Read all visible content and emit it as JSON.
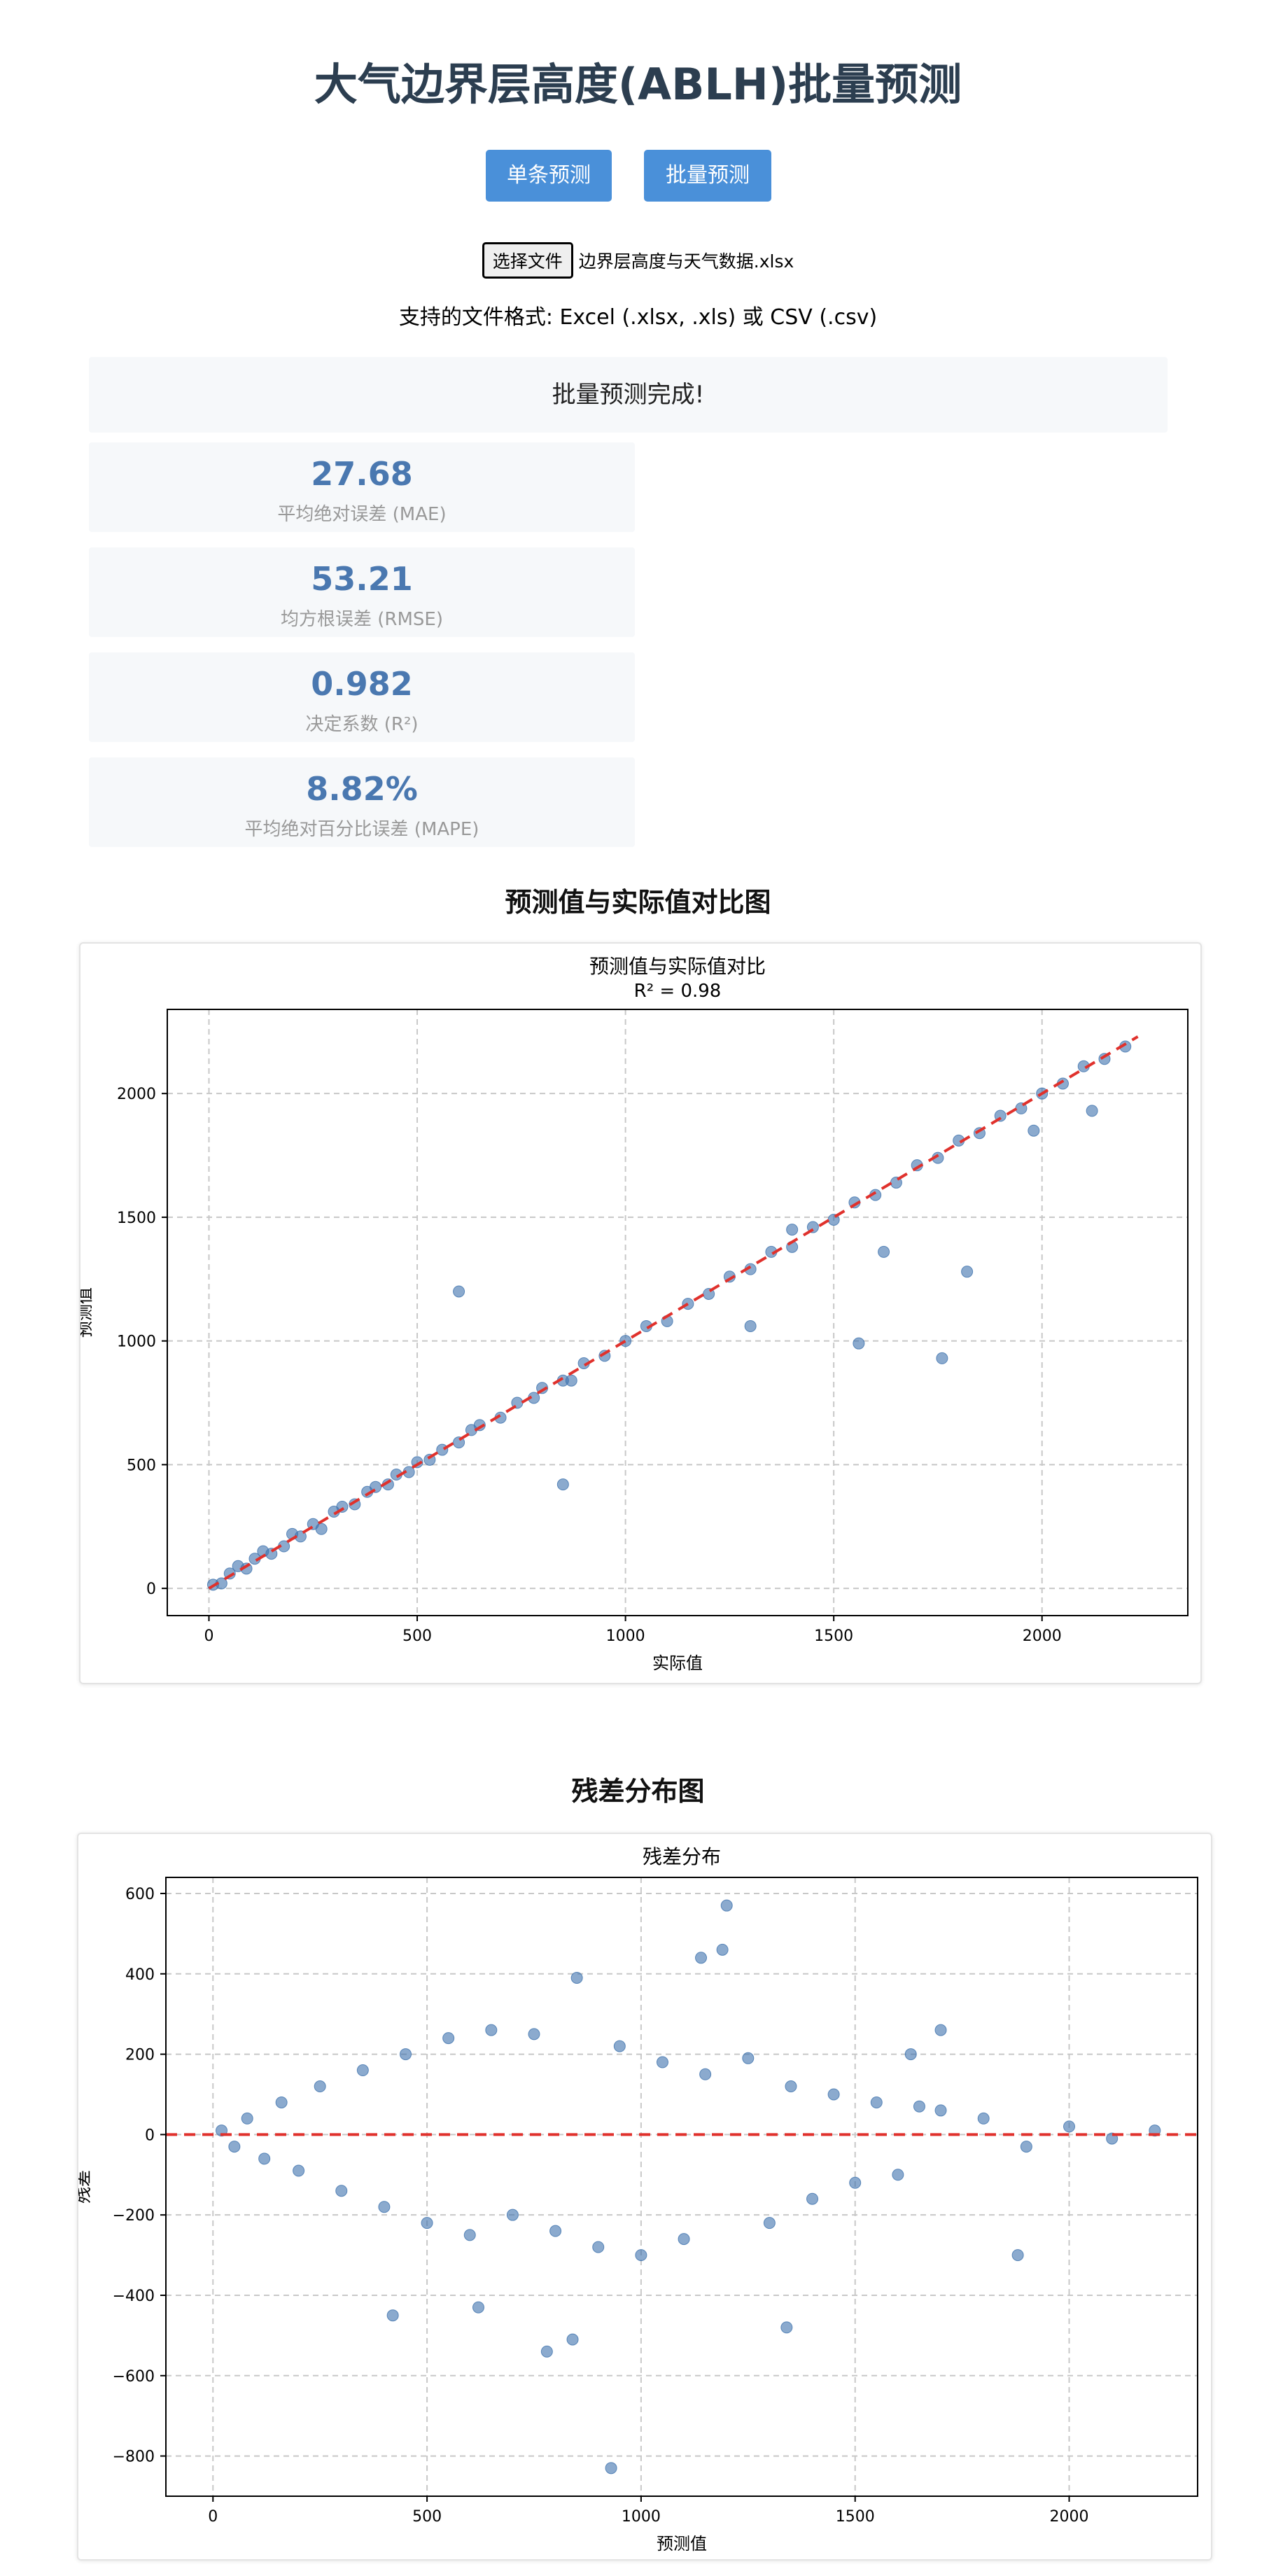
{
  "page": {
    "title": "大气边界层高度(ABLH)批量预测",
    "btn_single": "单条预测",
    "btn_batch": "批量预测",
    "file_button": "选择文件",
    "file_name": "边界层高度与天气数据.xlsx",
    "format_note": "支持的文件格式: Excel (.xlsx, .xls) 或 CSV (.csv)",
    "done_message": "批量预测完成!"
  },
  "metrics": [
    {
      "value": "27.68",
      "label": "平均绝对误差 (MAE)"
    },
    {
      "value": "53.21",
      "label": "均方根误差 (RMSE)"
    },
    {
      "value": "0.982",
      "label": "决定系数 (R²)"
    },
    {
      "value": "8.82%",
      "label": "平均绝对百分比误差 (MAPE)"
    }
  ],
  "sections": {
    "scatter_heading": "预测值与实际值对比图",
    "residual_heading": "残差分布图"
  },
  "colors": {
    "point": "#3d72ad",
    "ideal_line": "#e0312c",
    "button": "#4a90d9",
    "metric_value": "#4a78b0"
  },
  "chart_data": [
    {
      "type": "scatter",
      "title": "预测值与实际值对比",
      "subtitle": "R² = 0.98",
      "xlabel": "实际值",
      "ylabel": "预测值",
      "xlim": [
        -100,
        2350
      ],
      "ylim": [
        -110,
        2340
      ],
      "xticks": [
        0,
        500,
        1000,
        1500,
        2000
      ],
      "yticks": [
        0,
        500,
        1000,
        1500,
        2000
      ],
      "grid": true,
      "reference_line": {
        "style": "dashed",
        "from": [
          0,
          0
        ],
        "to": [
          2230,
          2230
        ]
      },
      "series": [
        {
          "x": [
            10,
            30,
            50,
            70,
            90,
            110,
            130,
            150,
            180,
            200,
            220,
            250,
            270,
            300,
            320,
            350,
            380,
            400,
            430,
            450,
            480,
            500,
            530,
            560,
            600,
            630,
            650,
            700,
            740,
            780,
            800,
            850,
            900,
            950,
            1000,
            1050,
            1100,
            1150,
            1200,
            1250,
            1300,
            1350,
            1400,
            1450,
            1500,
            1550,
            1600,
            1650,
            1700,
            1750,
            1800,
            1850,
            1900,
            1950,
            2000,
            2050,
            2100,
            2150,
            2200,
            870,
            1300,
            1560,
            1620,
            1760,
            1820,
            1400,
            600,
            850,
            1980,
            2120
          ],
          "y": [
            15,
            20,
            60,
            90,
            80,
            120,
            150,
            140,
            170,
            220,
            210,
            260,
            240,
            310,
            330,
            340,
            390,
            410,
            420,
            460,
            470,
            510,
            520,
            560,
            590,
            640,
            660,
            690,
            750,
            770,
            810,
            840,
            910,
            940,
            1000,
            1060,
            1080,
            1150,
            1190,
            1260,
            1290,
            1360,
            1380,
            1460,
            1490,
            1560,
            1590,
            1640,
            1710,
            1740,
            1810,
            1840,
            1910,
            1940,
            2000,
            2040,
            2110,
            2140,
            2190,
            840,
            1060,
            990,
            1360,
            930,
            1280,
            1450,
            1200,
            420,
            1850,
            1930
          ]
        }
      ]
    },
    {
      "type": "scatter",
      "title": "残差分布",
      "xlabel": "预测值",
      "ylabel": "残差",
      "xlim": [
        -110,
        2300
      ],
      "ylim": [
        -900,
        640
      ],
      "xticks": [
        0,
        500,
        1000,
        1500,
        2000
      ],
      "yticks": [
        -800,
        -600,
        -400,
        -200,
        0,
        200,
        400,
        600
      ],
      "grid": true,
      "reference_line": {
        "style": "dashed",
        "y": 0
      },
      "series": [
        {
          "x": [
            20,
            50,
            80,
            120,
            160,
            200,
            250,
            300,
            350,
            400,
            450,
            500,
            550,
            600,
            650,
            700,
            750,
            800,
            850,
            900,
            950,
            1000,
            1050,
            1100,
            1150,
            1200,
            1250,
            1300,
            1350,
            1400,
            1450,
            1500,
            1550,
            1600,
            1650,
            1700,
            1800,
            1900,
            2000,
            2100,
            2200,
            1190,
            1140,
            840,
            930,
            780,
            420,
            620,
            1340,
            1630,
            1700,
            1880
          ],
          "y": [
            10,
            -30,
            40,
            -60,
            80,
            -90,
            120,
            -140,
            160,
            -180,
            200,
            -220,
            240,
            -250,
            260,
            -200,
            250,
            -240,
            390,
            -280,
            220,
            -300,
            180,
            -260,
            150,
            570,
            190,
            -220,
            120,
            -160,
            100,
            -120,
            80,
            -100,
            70,
            60,
            40,
            -30,
            20,
            -10,
            10,
            460,
            440,
            -510,
            -830,
            -540,
            -450,
            -430,
            -480,
            200,
            260,
            -300
          ]
        }
      ]
    }
  ]
}
